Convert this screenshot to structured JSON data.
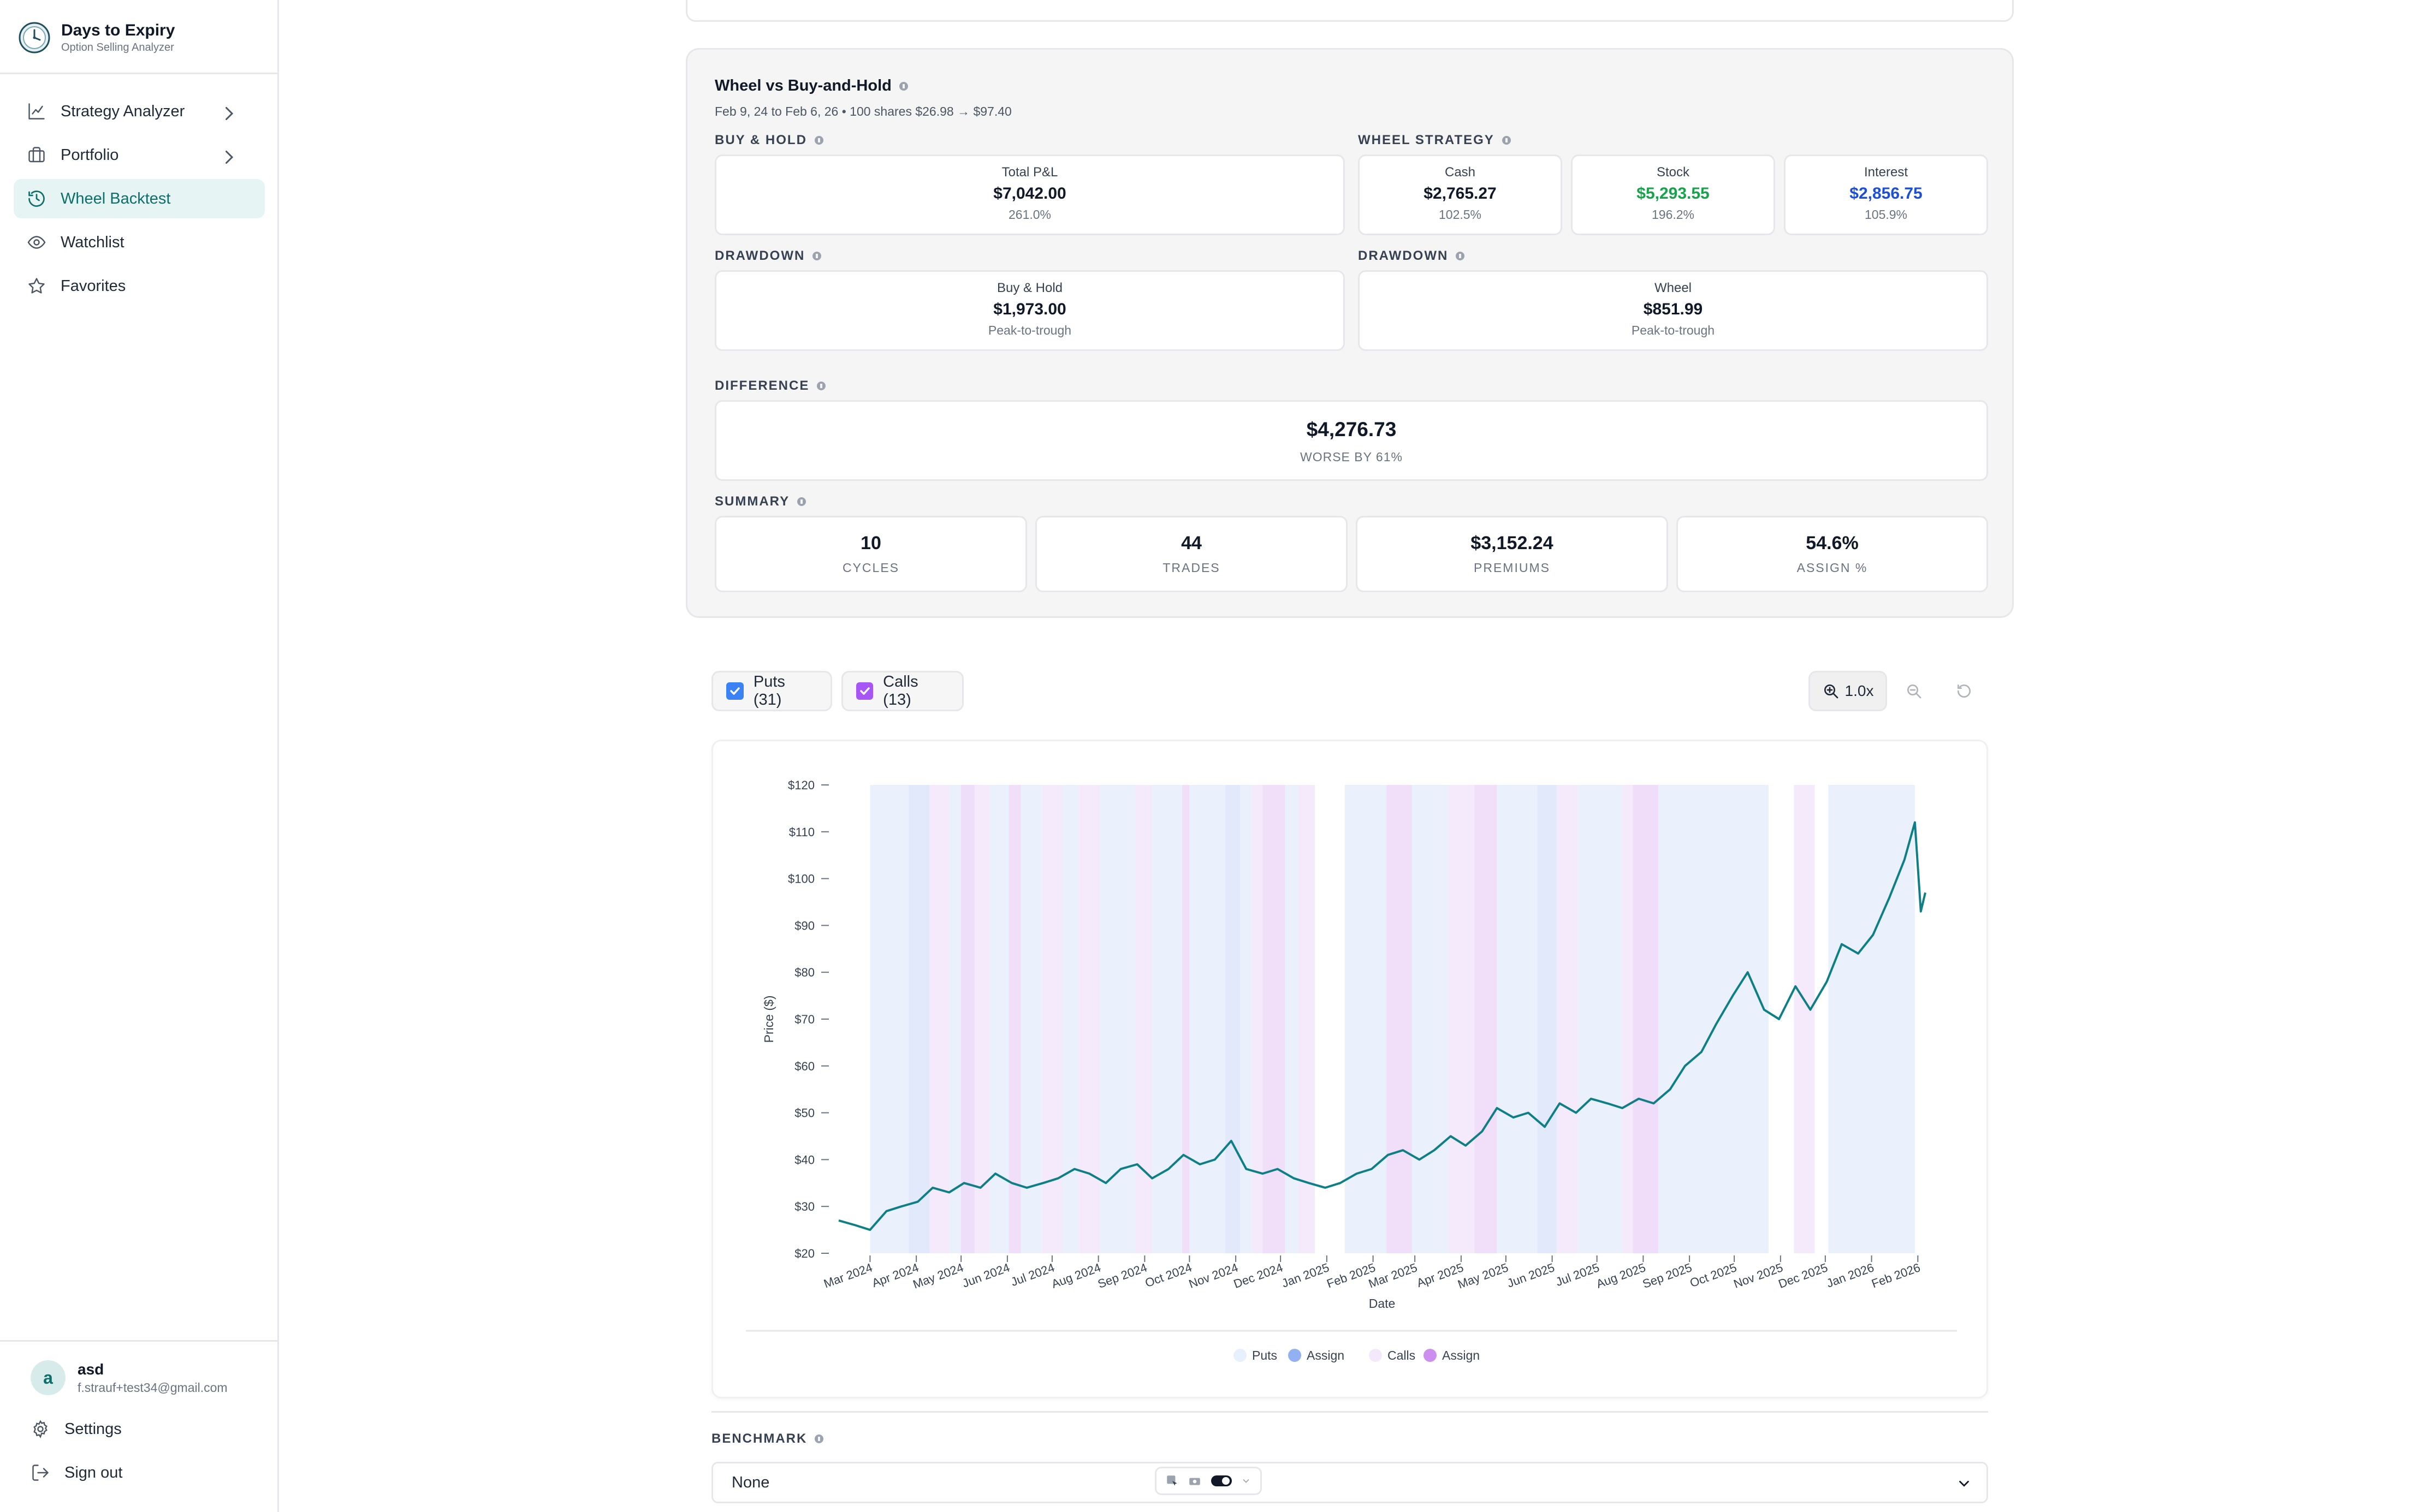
{
  "app": {
    "name": "Days to Expiry",
    "tagline": "Option Selling Analyzer"
  },
  "sidebar": {
    "items": [
      {
        "label": "Strategy Analyzer",
        "icon": "line-chart-icon",
        "has_children": true
      },
      {
        "label": "Portfolio",
        "icon": "briefcase-icon",
        "has_children": true
      },
      {
        "label": "Wheel Backtest",
        "icon": "history-icon",
        "active": true
      },
      {
        "label": "Watchlist",
        "icon": "eye-icon"
      },
      {
        "label": "Favorites",
        "icon": "star-icon"
      }
    ],
    "user": {
      "initial": "a",
      "name": "asd",
      "email": "f.strauf+test34@gmail.com"
    },
    "settings_label": "Settings",
    "signout_label": "Sign out"
  },
  "comparison": {
    "title": "Wheel vs Buy-and-Hold",
    "subtitle": "Feb 9, 24 to Feb 6, 26 • 100 shares $26.98 → $97.40",
    "buy_hold": {
      "section": "BUY & HOLD",
      "label": "Total P&L",
      "value": "$7,042.00",
      "pct": "261.0%"
    },
    "wheel": {
      "section": "WHEEL STRATEGY",
      "cash": {
        "label": "Cash",
        "value": "$2,765.27",
        "pct": "102.5%"
      },
      "stock": {
        "label": "Stock",
        "value": "$5,293.55",
        "pct": "196.2%"
      },
      "interest": {
        "label": "Interest",
        "value": "$2,856.75",
        "pct": "105.9%"
      }
    },
    "drawdown_bh": {
      "section": "DRAWDOWN",
      "label": "Buy & Hold",
      "value": "$1,973.00",
      "note": "Peak-to-trough"
    },
    "drawdown_wheel": {
      "section": "DRAWDOWN",
      "label": "Wheel",
      "value": "$851.99",
      "note": "Peak-to-trough"
    },
    "difference": {
      "section": "DIFFERENCE",
      "value": "$4,276.73",
      "note": "WORSE BY 61%"
    },
    "summary": {
      "section": "SUMMARY",
      "items": [
        {
          "value": "10",
          "label": "CYCLES"
        },
        {
          "value": "44",
          "label": "TRADES"
        },
        {
          "value": "$3,152.24",
          "label": "PREMIUMS"
        },
        {
          "value": "54.6%",
          "label": "ASSIGN %"
        }
      ]
    }
  },
  "filters": {
    "puts": {
      "label": "Puts (31)",
      "checked": true,
      "color": "#3b82f6"
    },
    "calls": {
      "label": "Calls (13)",
      "checked": true,
      "color": "#a855f7"
    },
    "zoom_label": "1.0x"
  },
  "benchmark": {
    "label": "BENCHMARK",
    "selected": "None"
  },
  "colors": {
    "line": "#0e7f86",
    "puts_band": "#e8effd",
    "puts_assign": "#93b1f2",
    "calls_band": "#f4e8fb",
    "calls_assign": "#cc8ff0",
    "accent": "#0f6d6a"
  },
  "chart_data": {
    "type": "line",
    "title": "",
    "xlabel": "Date",
    "ylabel": "Price ($)",
    "ylim": [
      20,
      120
    ],
    "y_ticks": [
      "$20",
      "$30",
      "$40",
      "$50",
      "$60",
      "$70",
      "$80",
      "$90",
      "$100",
      "$110",
      "$120"
    ],
    "x_ticks": [
      "Mar 2024",
      "Apr 2024",
      "May 2024",
      "Jun 2024",
      "Jul 2024",
      "Aug 2024",
      "Sep 2024",
      "Oct 2024",
      "Nov 2024",
      "Dec 2024",
      "Jan 2025",
      "Feb 2025",
      "Mar 2025",
      "Apr 2025",
      "May 2025",
      "Jun 2025",
      "Jul 2025",
      "Aug 2025",
      "Sep 2025",
      "Oct 2025",
      "Nov 2025",
      "Dec 2025",
      "Jan 2026",
      "Feb 2026"
    ],
    "legend": [
      "Puts",
      "Assign",
      "Calls",
      "Assign"
    ],
    "legend_position": "bottom",
    "x_range": [
      "2024-02-09",
      "2026-02-06"
    ],
    "series": [
      {
        "x": [
          "2024-02-09",
          "2024-02-20",
          "2024-03-01",
          "2024-03-12",
          "2024-03-22",
          "2024-04-02",
          "2024-04-12",
          "2024-04-23",
          "2024-05-03",
          "2024-05-14",
          "2024-05-24",
          "2024-06-04",
          "2024-06-14",
          "2024-06-25",
          "2024-07-05",
          "2024-07-16",
          "2024-07-26",
          "2024-08-06",
          "2024-08-16",
          "2024-08-27",
          "2024-09-06",
          "2024-09-17",
          "2024-09-27",
          "2024-10-08",
          "2024-10-18",
          "2024-10-29",
          "2024-11-08",
          "2024-11-19",
          "2024-11-29",
          "2024-12-10",
          "2024-12-20",
          "2024-12-31",
          "2025-01-10",
          "2025-01-21",
          "2025-01-31",
          "2025-02-11",
          "2025-02-21",
          "2025-03-04",
          "2025-03-14",
          "2025-03-25",
          "2025-04-04",
          "2025-04-15",
          "2025-04-25",
          "2025-05-06",
          "2025-05-16",
          "2025-05-27",
          "2025-06-06",
          "2025-06-17",
          "2025-06-27",
          "2025-07-08",
          "2025-07-18",
          "2025-07-29",
          "2025-08-08",
          "2025-08-19",
          "2025-08-29",
          "2025-09-09",
          "2025-09-19",
          "2025-09-30",
          "2025-10-10",
          "2025-10-21",
          "2025-10-31",
          "2025-11-11",
          "2025-11-21",
          "2025-12-02",
          "2025-12-12",
          "2025-12-23",
          "2026-01-02",
          "2026-01-13",
          "2026-01-23",
          "2026-01-30",
          "2026-02-03",
          "2026-02-06"
        ],
        "y": [
          27,
          26,
          25,
          29,
          30,
          31,
          34,
          33,
          35,
          34,
          37,
          35,
          34,
          35,
          36,
          38,
          37,
          35,
          38,
          39,
          36,
          38,
          41,
          39,
          40,
          44,
          38,
          37,
          38,
          36,
          35,
          34,
          35,
          37,
          38,
          41,
          42,
          40,
          42,
          45,
          43,
          46,
          51,
          49,
          50,
          47,
          52,
          50,
          53,
          52,
          51,
          53,
          52,
          55,
          60,
          63,
          69,
          75,
          80,
          72,
          70,
          77,
          72,
          78,
          86,
          84,
          88,
          96,
          104,
          112,
          93,
          97
        ]
      }
    ],
    "puts_bands": [
      [
        "2024-03-01",
        "2024-03-27"
      ],
      [
        "2024-04-23",
        "2024-05-10"
      ],
      [
        "2024-05-20",
        "2024-06-02"
      ],
      [
        "2024-06-10",
        "2024-06-24"
      ],
      [
        "2024-07-08",
        "2024-07-19"
      ],
      [
        "2024-08-02",
        "2024-08-26"
      ],
      [
        "2024-09-06",
        "2024-09-26"
      ],
      [
        "2024-10-01",
        "2024-10-25"
      ],
      [
        "2024-11-04",
        "2024-11-12"
      ],
      [
        "2024-12-04",
        "2024-12-13"
      ],
      [
        "2025-01-13",
        "2025-02-10"
      ],
      [
        "2025-02-27",
        "2025-03-24"
      ],
      [
        "2025-04-25",
        "2025-05-22"
      ],
      [
        "2025-06-18",
        "2025-07-18"
      ],
      [
        "2025-08-11",
        "2025-09-22"
      ],
      [
        "2025-09-22",
        "2025-10-24"
      ],
      [
        "2025-12-03",
        "2026-01-30"
      ]
    ],
    "puts_assign_bands": [
      [
        "2024-03-27",
        "2024-04-10"
      ],
      [
        "2024-10-25",
        "2024-11-04"
      ],
      [
        "2025-05-22",
        "2025-06-04"
      ]
    ],
    "calls_bands": [
      [
        "2024-04-10",
        "2024-04-23"
      ],
      [
        "2024-05-10",
        "2024-05-20"
      ],
      [
        "2024-06-24",
        "2024-07-08"
      ],
      [
        "2024-07-19",
        "2024-08-02"
      ],
      [
        "2024-08-26",
        "2024-09-06"
      ],
      [
        "2024-11-12",
        "2024-11-19"
      ],
      [
        "2024-12-13",
        "2024-12-24"
      ],
      [
        "2025-03-24",
        "2025-04-10"
      ],
      [
        "2025-06-04",
        "2025-06-18"
      ],
      [
        "2025-07-18",
        "2025-08-11"
      ],
      [
        "2025-11-10",
        "2025-11-24"
      ]
    ],
    "calls_assign_bands": [
      [
        "2024-05-01",
        "2024-05-10"
      ],
      [
        "2024-06-02",
        "2024-06-10"
      ],
      [
        "2024-09-26",
        "2024-10-01"
      ],
      [
        "2024-11-19",
        "2024-12-04"
      ],
      [
        "2025-02-10",
        "2025-02-27"
      ],
      [
        "2025-04-10",
        "2025-04-25"
      ],
      [
        "2025-07-25",
        "2025-08-11"
      ]
    ]
  }
}
